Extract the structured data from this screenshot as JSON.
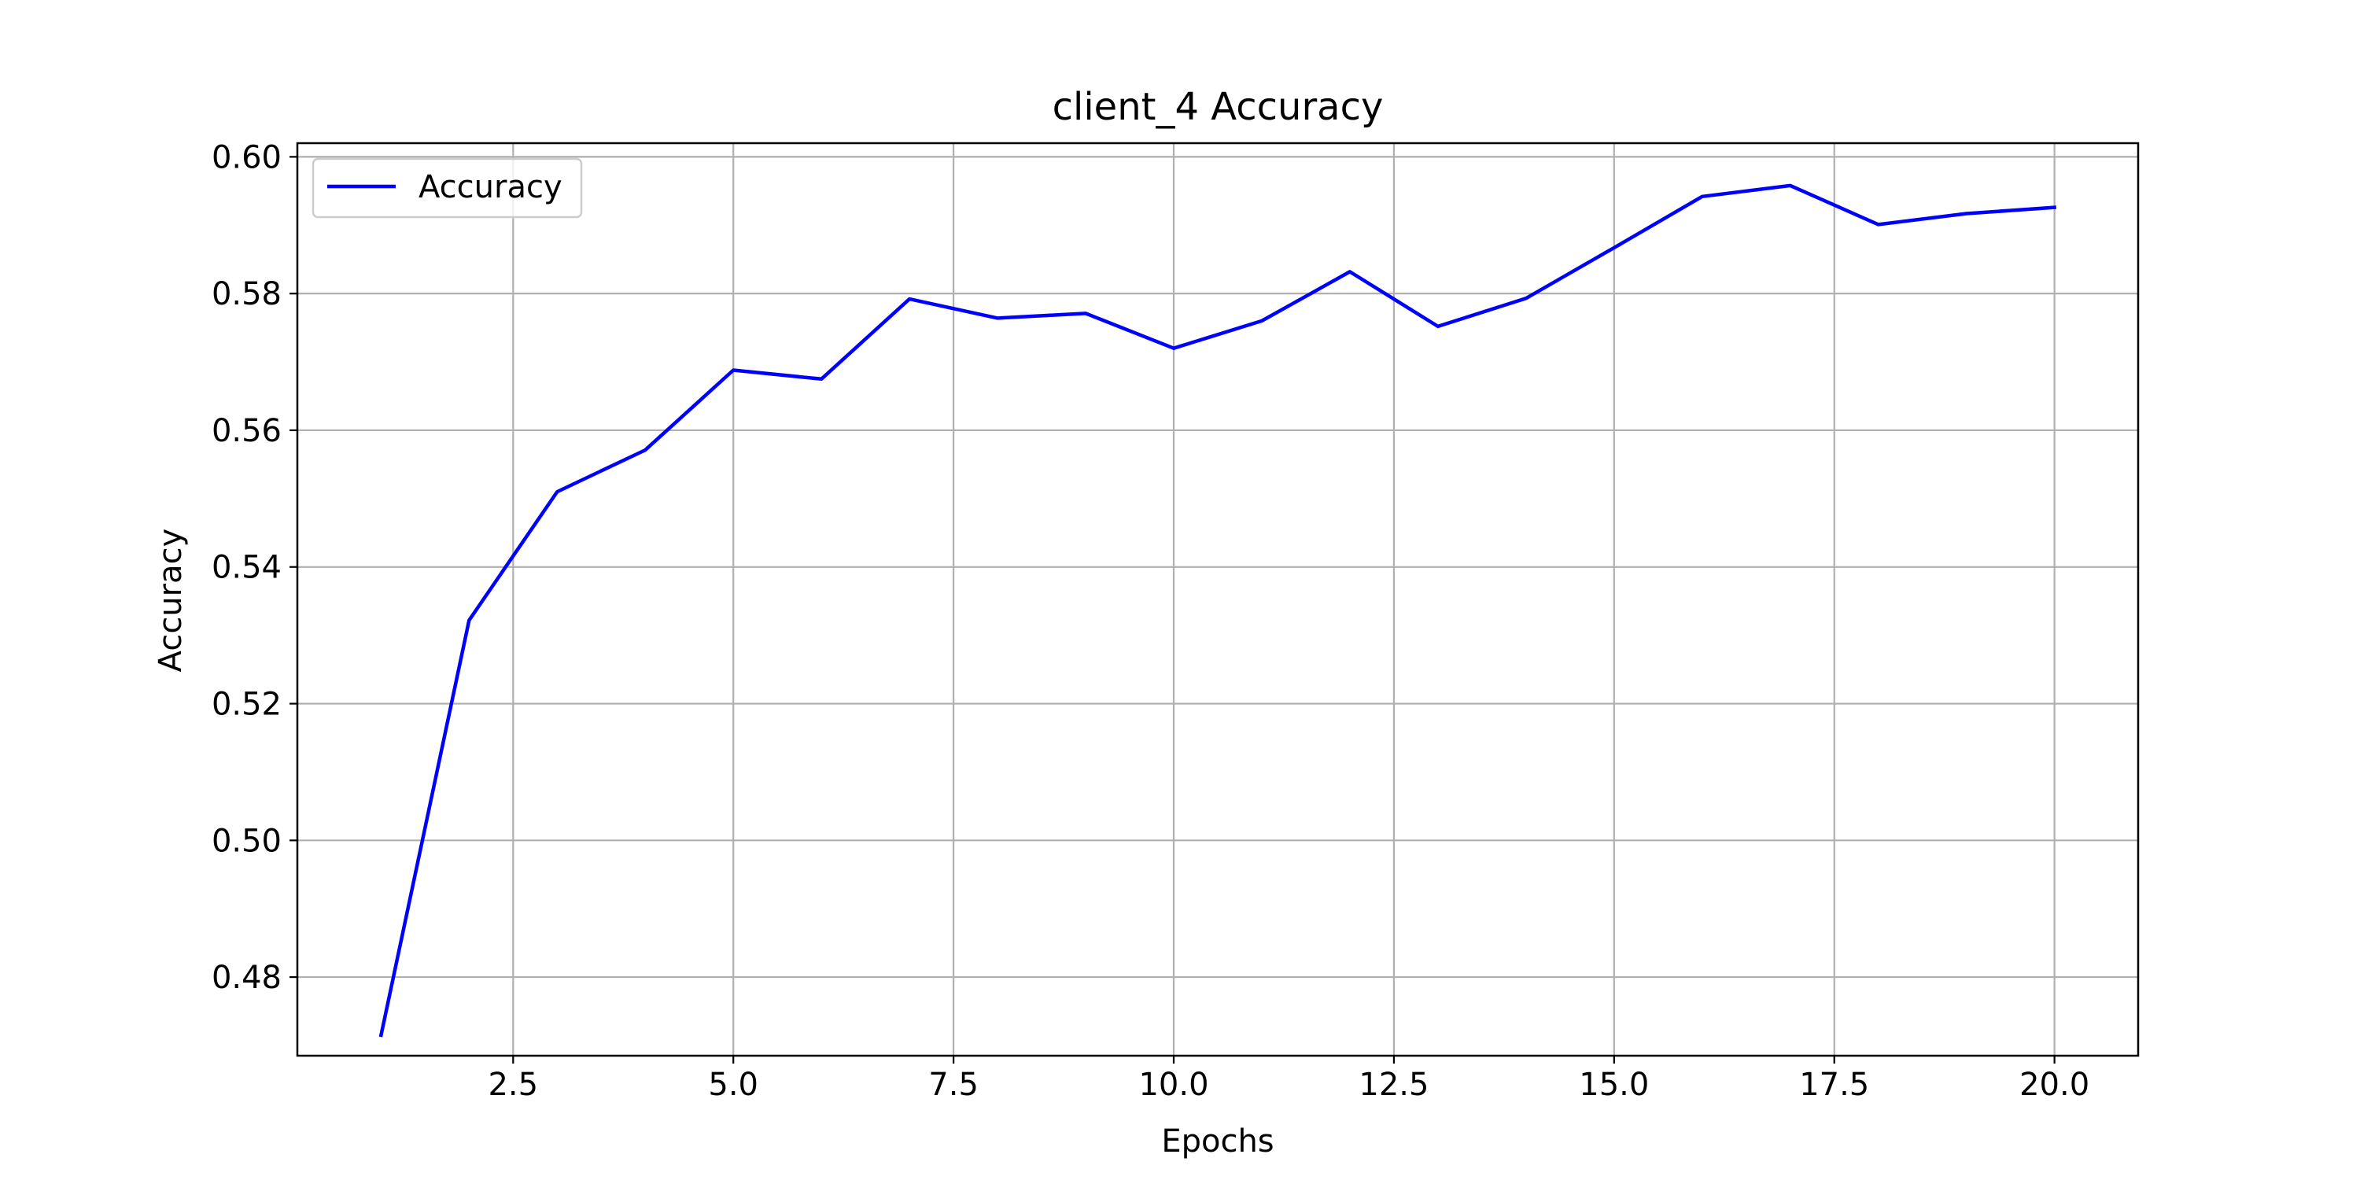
{
  "chart_data": {
    "type": "line",
    "title": "client_4 Accuracy",
    "xlabel": "Epochs",
    "ylabel": "Accuracy",
    "xlim": [
      0.05,
      20.95
    ],
    "ylim": [
      0.4685,
      0.602
    ],
    "xticks": [
      2.5,
      5.0,
      7.5,
      10.0,
      12.5,
      15.0,
      17.5,
      20.0
    ],
    "xtick_labels": [
      "2.5",
      "5.0",
      "7.5",
      "10.0",
      "12.5",
      "15.0",
      "17.5",
      "20.0"
    ],
    "yticks": [
      0.48,
      0.5,
      0.52,
      0.54,
      0.56,
      0.58,
      0.6
    ],
    "ytick_labels": [
      "0.48",
      "0.50",
      "0.52",
      "0.54",
      "0.56",
      "0.58",
      "0.60"
    ],
    "grid": true,
    "legend": {
      "position": "upper-left",
      "entries": [
        "Accuracy"
      ]
    },
    "series": [
      {
        "name": "Accuracy",
        "color": "#0000ff",
        "x": [
          1,
          2,
          3,
          4,
          5,
          6,
          7,
          8,
          9,
          10,
          11,
          12,
          13,
          14,
          15,
          16,
          17,
          18,
          19,
          20
        ],
        "values": [
          0.4715,
          0.5322,
          0.551,
          0.5571,
          0.5688,
          0.5675,
          0.5792,
          0.5764,
          0.5771,
          0.572,
          0.576,
          0.5832,
          0.5752,
          0.5793,
          0.5867,
          0.5942,
          0.5958,
          0.5901,
          0.5917,
          0.5926
        ]
      }
    ]
  }
}
